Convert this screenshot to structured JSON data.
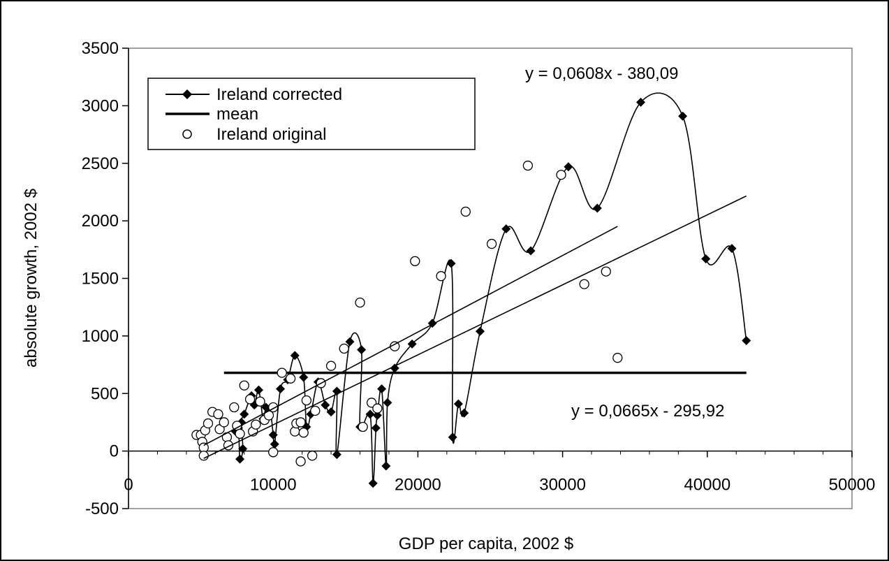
{
  "chart_data": {
    "type": "scatter",
    "title": "",
    "xlabel": "GDP per capita, 2002 $",
    "ylabel": "absolute growth, 2002 $",
    "xlim": [
      0,
      50000
    ],
    "ylim": [
      -500,
      3500
    ],
    "x_ticks": [
      "0",
      "10000",
      "20000",
      "30000",
      "40000",
      "50000"
    ],
    "y_ticks": [
      "-500",
      "0",
      "500",
      "1000",
      "1500",
      "2000",
      "2500",
      "3000",
      "3500"
    ],
    "grid": false,
    "legend_position": "top-left",
    "annotations": [
      "y = 0,0608x - 380,09",
      "y = 0,0665x - 295,92"
    ],
    "series": [
      {
        "name": "Ireland corrected",
        "style": "line-diamond",
        "points": [
          [
            7400,
            170
          ],
          [
            7600,
            200
          ],
          [
            7700,
            -70
          ],
          [
            7900,
            20
          ],
          [
            7800,
            250
          ],
          [
            8000,
            320
          ],
          [
            8500,
            480
          ],
          [
            8700,
            400
          ],
          [
            9000,
            530
          ],
          [
            9300,
            280
          ],
          [
            9500,
            380
          ],
          [
            9800,
            350
          ],
          [
            10000,
            140
          ],
          [
            10100,
            60
          ],
          [
            10500,
            540
          ],
          [
            11000,
            620
          ],
          [
            11500,
            830
          ],
          [
            12100,
            640
          ],
          [
            12300,
            210
          ],
          [
            12600,
            320
          ],
          [
            13100,
            600
          ],
          [
            13600,
            400
          ],
          [
            14000,
            340
          ],
          [
            14400,
            520
          ],
          [
            14400,
            -30
          ],
          [
            15300,
            950
          ],
          [
            16100,
            880
          ],
          [
            16000,
            210
          ],
          [
            16700,
            320
          ],
          [
            16900,
            -280
          ],
          [
            17100,
            200
          ],
          [
            17200,
            310
          ],
          [
            17500,
            540
          ],
          [
            17800,
            -130
          ],
          [
            17900,
            420
          ],
          [
            18400,
            720
          ],
          [
            19600,
            930
          ],
          [
            21000,
            1110
          ],
          [
            22300,
            1630
          ],
          [
            22400,
            120
          ],
          [
            22800,
            410
          ],
          [
            23200,
            330
          ],
          [
            24300,
            1040
          ],
          [
            26100,
            1930
          ],
          [
            27800,
            1740
          ],
          [
            30400,
            2470
          ],
          [
            32400,
            2110
          ],
          [
            35400,
            3030
          ],
          [
            38300,
            2910
          ],
          [
            39900,
            1670
          ],
          [
            41700,
            1760
          ],
          [
            42700,
            960
          ]
        ]
      },
      {
        "name": "mean",
        "style": "thick-line",
        "points": [
          [
            6600,
            680
          ],
          [
            42700,
            680
          ]
        ]
      },
      {
        "name": "Ireland original",
        "style": "open-circle",
        "points": [
          [
            4700,
            140
          ],
          [
            5000,
            140
          ],
          [
            5100,
            80
          ],
          [
            5200,
            30
          ],
          [
            5200,
            -40
          ],
          [
            5300,
            180
          ],
          [
            5500,
            240
          ],
          [
            5800,
            340
          ],
          [
            6200,
            320
          ],
          [
            6300,
            190
          ],
          [
            6600,
            250
          ],
          [
            6800,
            120
          ],
          [
            6900,
            50
          ],
          [
            7300,
            380
          ],
          [
            7500,
            220
          ],
          [
            7700,
            150
          ],
          [
            8000,
            570
          ],
          [
            8400,
            450
          ],
          [
            8600,
            170
          ],
          [
            8800,
            230
          ],
          [
            9100,
            430
          ],
          [
            9400,
            270
          ],
          [
            9700,
            310
          ],
          [
            10000,
            380
          ],
          [
            10000,
            -10
          ],
          [
            10600,
            680
          ],
          [
            11200,
            630
          ],
          [
            11500,
            170
          ],
          [
            11600,
            240
          ],
          [
            11900,
            250
          ],
          [
            11900,
            -90
          ],
          [
            12100,
            160
          ],
          [
            12300,
            440
          ],
          [
            12700,
            -40
          ],
          [
            12900,
            350
          ],
          [
            13300,
            590
          ],
          [
            14000,
            740
          ],
          [
            14900,
            890
          ],
          [
            16000,
            1290
          ],
          [
            16200,
            210
          ],
          [
            16800,
            420
          ],
          [
            17200,
            370
          ],
          [
            18400,
            910
          ],
          [
            19800,
            1650
          ],
          [
            21600,
            1520
          ],
          [
            23300,
            2080
          ],
          [
            25100,
            1800
          ],
          [
            27600,
            2480
          ],
          [
            29900,
            2400
          ],
          [
            31500,
            1450
          ],
          [
            33000,
            1560
          ],
          [
            33800,
            810
          ]
        ]
      }
    ]
  }
}
